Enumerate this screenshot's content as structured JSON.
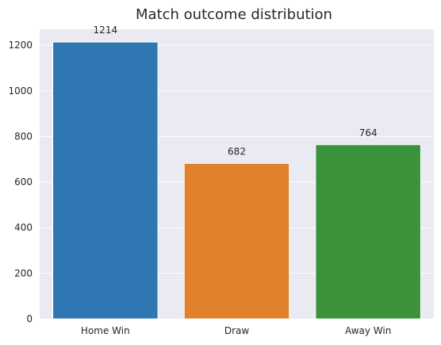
{
  "chart_data": {
    "type": "bar",
    "title": "Match outcome distribution",
    "xlabel": "",
    "ylabel": "",
    "categories": [
      "Home Win",
      "Draw",
      "Away Win"
    ],
    "values": [
      1214,
      682,
      764
    ],
    "data_labels": [
      "1214",
      "682",
      "764"
    ],
    "colors": [
      "#2f77b3",
      "#e1812c",
      "#3a923a"
    ],
    "ylim": [
      0,
      1270
    ],
    "yticks": [
      0,
      200,
      400,
      600,
      800,
      1000,
      1200
    ],
    "grid": true,
    "legend": "none",
    "background": "#eaeaf2"
  }
}
